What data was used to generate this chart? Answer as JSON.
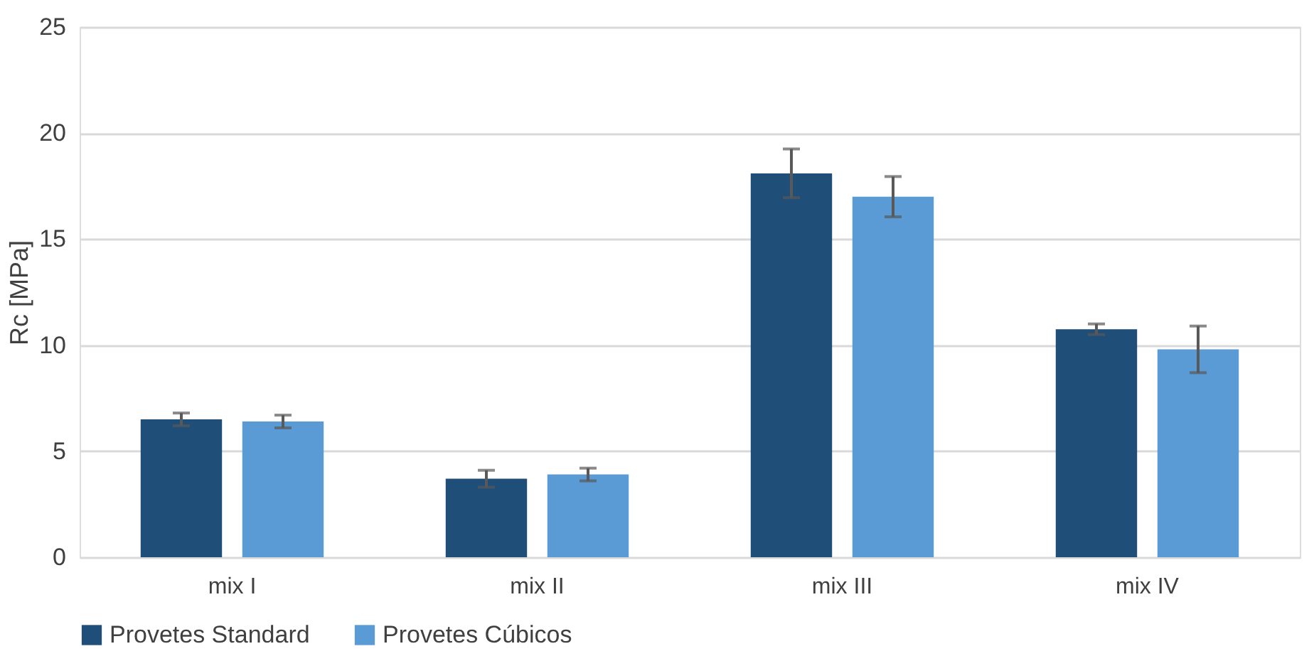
{
  "chart_data": {
    "type": "bar",
    "ylabel": "Rc [MPa]",
    "categories": [
      "mix I",
      "mix II",
      "mix III",
      "mix IV"
    ],
    "series": [
      {
        "name": "Provetes Standard",
        "color": "#1f4e79",
        "values": [
          6.5,
          3.7,
          18.1,
          10.75
        ],
        "errors": [
          0.3,
          0.4,
          1.15,
          0.25
        ]
      },
      {
        "name": "Provetes Cúbicos",
        "color": "#5b9bd5",
        "values": [
          6.4,
          3.9,
          17.0,
          9.8
        ],
        "errors": [
          0.3,
          0.3,
          0.95,
          1.1
        ]
      }
    ],
    "ylim": [
      0,
      25
    ],
    "yticks": [
      0,
      5,
      10,
      15,
      20,
      25
    ],
    "grid": "y",
    "legend": "bottom"
  }
}
